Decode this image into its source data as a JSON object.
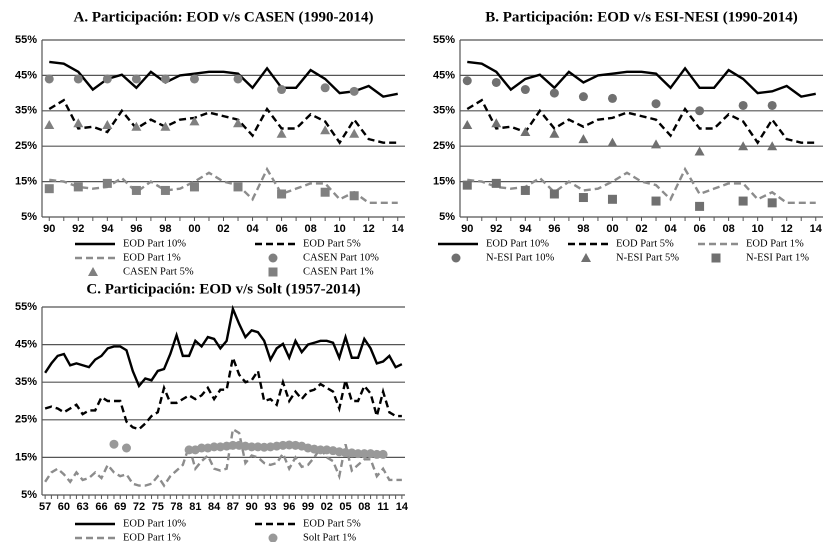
{
  "chart_data": [
    {
      "type": "line",
      "title": "A. Participación: EOD v/s CASEN (1990-2014)",
      "categories": [
        "90",
        null,
        "92",
        null,
        "94",
        null,
        "96",
        null,
        "98",
        null,
        "00",
        null,
        "02",
        null,
        "04",
        null,
        "06",
        null,
        "08",
        null,
        "10",
        null,
        "12",
        null,
        "14"
      ],
      "ylim": [
        5,
        55
      ],
      "yticks": [
        {
          "value": 5,
          "label": "5%"
        },
        {
          "value": 15,
          "label": "15%"
        },
        {
          "value": 25,
          "label": "25%"
        },
        {
          "value": 35,
          "label": "35%"
        },
        {
          "value": 45,
          "label": "45%"
        },
        {
          "value": 55,
          "label": "55%"
        }
      ],
      "grid": true,
      "series": [
        {
          "name": "EOD Part 10%",
          "color": "#000000",
          "dash": false,
          "values": [
            48.8,
            48.3,
            46,
            41,
            44,
            45.2,
            41.5,
            46,
            43,
            45,
            45.5,
            46,
            46,
            45.5,
            41.5,
            47,
            41.5,
            41.5,
            46.5,
            44,
            40,
            40.5,
            42,
            39,
            39.8
          ]
        },
        {
          "name": "EOD Part 5%",
          "color": "#000000",
          "dash": true,
          "values": [
            35.5,
            38,
            30,
            30.5,
            29,
            35,
            30,
            32.5,
            30.5,
            32.5,
            33,
            34.5,
            33.5,
            32.5,
            28,
            35.5,
            30,
            30,
            34,
            32,
            26,
            32.5,
            27,
            26,
            26
          ]
        },
        {
          "name": "EOD Part 1%",
          "color": "#8c8c8c",
          "dash": true,
          "values": [
            15.5,
            15,
            13.5,
            13,
            13.5,
            16,
            12,
            15,
            12.5,
            13,
            15,
            17.5,
            15,
            14,
            10,
            18.5,
            11.5,
            13,
            14.5,
            14.5,
            10,
            12,
            9,
            9,
            9
          ]
        },
        {
          "name": "CASEN Part 10%",
          "color": "#808080",
          "marker": "circle",
          "values": [
            44,
            null,
            44,
            null,
            44,
            null,
            44,
            null,
            44,
            null,
            44,
            null,
            null,
            44,
            null,
            null,
            41,
            null,
            null,
            41.5,
            null,
            40.5,
            null,
            null,
            null
          ]
        },
        {
          "name": "CASEN Part 5%",
          "color": "#808080",
          "marker": "triangle",
          "values": [
            31,
            null,
            31.5,
            null,
            31,
            null,
            30.5,
            null,
            30.5,
            null,
            32,
            null,
            null,
            31.5,
            null,
            null,
            28.5,
            null,
            null,
            29.5,
            null,
            28.5,
            null,
            null,
            null
          ]
        },
        {
          "name": "CASEN Part 1%",
          "color": "#808080",
          "marker": "square",
          "values": [
            13,
            null,
            13.5,
            null,
            14.5,
            null,
            12.5,
            null,
            12.5,
            null,
            13.5,
            null,
            null,
            13.5,
            null,
            null,
            11.5,
            null,
            null,
            12,
            null,
            11,
            null,
            null,
            null
          ]
        }
      ]
    },
    {
      "type": "line",
      "title": "B. Participación: EOD v/s ESI-NESI (1990-2014)",
      "categories": [
        "90",
        null,
        "92",
        null,
        "94",
        null,
        "96",
        null,
        "98",
        null,
        "00",
        null,
        "02",
        null,
        "04",
        null,
        "06",
        null,
        "08",
        null,
        "10",
        null,
        "12",
        null,
        "14"
      ],
      "ylim": [
        5,
        55
      ],
      "yticks": [
        {
          "value": 5,
          "label": "5%"
        },
        {
          "value": 15,
          "label": "15%"
        },
        {
          "value": 25,
          "label": "25%"
        },
        {
          "value": 35,
          "label": "35%"
        },
        {
          "value": 45,
          "label": "45%"
        },
        {
          "value": 55,
          "label": "55%"
        }
      ],
      "grid": true,
      "series": [
        {
          "name": "EOD Part 10%",
          "color": "#000000",
          "dash": false,
          "values": [
            48.8,
            48.3,
            46,
            41,
            44,
            45.2,
            41.5,
            46,
            43,
            45,
            45.5,
            46,
            46,
            45.5,
            41.5,
            47,
            41.5,
            41.5,
            46.5,
            44,
            40,
            40.5,
            42,
            39,
            39.8
          ]
        },
        {
          "name": "EOD Part 5%",
          "color": "#000000",
          "dash": true,
          "values": [
            35.5,
            38,
            30,
            30.5,
            29,
            35,
            30,
            32.5,
            30.5,
            32.5,
            33,
            34.5,
            33.5,
            32.5,
            28,
            35.5,
            30,
            30,
            34,
            32,
            26,
            32.5,
            27,
            26,
            26
          ]
        },
        {
          "name": "EOD Part 1%",
          "color": "#8c8c8c",
          "dash": true,
          "values": [
            15.5,
            15,
            13.5,
            13,
            13.5,
            16,
            12,
            15,
            12.5,
            13,
            15,
            17.5,
            15,
            14,
            10,
            18.5,
            11.5,
            13,
            14.5,
            14.5,
            10,
            12,
            9,
            9,
            9
          ]
        },
        {
          "name": "N-ESI Part 10%",
          "color": "#707070",
          "marker": "circle",
          "values": [
            43.5,
            null,
            43,
            null,
            41,
            null,
            40,
            null,
            39,
            null,
            38.5,
            null,
            null,
            37,
            null,
            null,
            35,
            null,
            null,
            36.5,
            null,
            36.5,
            null,
            null,
            null
          ]
        },
        {
          "name": "N-ESI Part 5%",
          "color": "#707070",
          "marker": "triangle",
          "values": [
            31,
            null,
            31.5,
            null,
            29,
            null,
            28.5,
            null,
            27,
            null,
            26,
            null,
            null,
            25.5,
            null,
            null,
            23.5,
            null,
            null,
            25,
            null,
            25,
            null,
            null,
            null
          ]
        },
        {
          "name": "N-ESI Part 1%",
          "color": "#707070",
          "marker": "square",
          "values": [
            14,
            null,
            14.5,
            null,
            12.5,
            null,
            11.5,
            null,
            10.5,
            null,
            10,
            null,
            null,
            9.5,
            null,
            null,
            8,
            null,
            null,
            9.5,
            null,
            9,
            null,
            null,
            null
          ]
        }
      ]
    },
    {
      "type": "line",
      "title": "C. Participación: EOD v/s Solt (1957-2014)",
      "categories": [
        "57",
        null,
        null,
        "60",
        null,
        null,
        "63",
        null,
        null,
        "66",
        null,
        null,
        "69",
        null,
        null,
        "72",
        null,
        null,
        "75",
        null,
        null,
        "78",
        null,
        null,
        "81",
        null,
        null,
        "84",
        null,
        null,
        "87",
        null,
        null,
        "90",
        null,
        null,
        "93",
        null,
        null,
        "96",
        null,
        null,
        "99",
        null,
        null,
        "02",
        null,
        null,
        "05",
        null,
        null,
        "08",
        null,
        null,
        "11",
        null,
        null,
        "14"
      ],
      "ylim": [
        5,
        55
      ],
      "yticks": [
        {
          "value": 5,
          "label": "5%"
        },
        {
          "value": 15,
          "label": "15%"
        },
        {
          "value": 25,
          "label": "25%"
        },
        {
          "value": 35,
          "label": "35%"
        },
        {
          "value": 45,
          "label": "45%"
        },
        {
          "value": 55,
          "label": "55%"
        }
      ],
      "grid": true,
      "series": [
        {
          "name": "EOD Part 10%",
          "color": "#000000",
          "dash": false,
          "values": [
            37.5,
            40,
            42,
            42.5,
            39.5,
            40,
            39.5,
            39,
            41,
            42,
            44,
            44.5,
            44.5,
            43.5,
            38,
            34,
            36,
            35.5,
            38,
            38.5,
            42.5,
            47.5,
            42,
            42,
            46,
            44.5,
            47,
            46.5,
            44,
            46,
            54.5,
            50.5,
            47,
            48.8,
            48.3,
            46,
            41,
            44,
            45.2,
            41.5,
            46,
            43,
            45,
            45.5,
            46,
            46,
            45.5,
            41.5,
            47,
            41.5,
            41.5,
            46.5,
            44,
            40,
            40.5,
            42,
            39,
            39.8
          ]
        },
        {
          "name": "EOD Part 5%",
          "color": "#000000",
          "dash": true,
          "values": [
            28,
            28.5,
            28,
            27,
            28,
            29,
            26.5,
            27.5,
            27.5,
            31,
            30,
            30,
            30,
            24.5,
            23,
            22.5,
            24,
            26,
            27,
            33.5,
            29.5,
            29.5,
            30.5,
            31.5,
            30.5,
            31.5,
            33.5,
            30.5,
            33,
            33,
            41.5,
            37,
            35,
            35.5,
            38,
            30,
            30.5,
            29,
            35,
            30,
            32.5,
            30.5,
            32.5,
            33,
            34.5,
            33.5,
            32.5,
            28,
            35.5,
            30,
            30,
            34,
            32,
            26,
            32.5,
            27,
            26,
            26
          ]
        },
        {
          "name": "EOD Part 1%",
          "color": "#8c8c8c",
          "dash": true,
          "values": [
            8.5,
            11,
            12,
            10.5,
            8.5,
            11,
            9,
            9.5,
            11,
            9.5,
            13,
            11,
            10,
            10.5,
            8,
            7.5,
            7.5,
            8,
            10,
            7.5,
            10,
            11.5,
            13,
            18,
            12,
            14,
            15.5,
            12,
            11.5,
            12,
            22.5,
            21.5,
            13.5,
            15.5,
            15,
            13.5,
            13,
            13.5,
            16,
            12,
            15,
            12.5,
            13,
            15,
            17.5,
            15,
            14,
            10,
            18.5,
            11.5,
            13,
            14.5,
            14.5,
            10,
            12,
            9,
            9,
            9
          ]
        },
        {
          "name": "Solt Part 1%",
          "color": "#999999",
          "marker": "circle",
          "values": [
            null,
            null,
            null,
            null,
            null,
            null,
            null,
            null,
            null,
            null,
            null,
            18.5,
            null,
            17.5,
            null,
            null,
            null,
            null,
            null,
            null,
            null,
            null,
            null,
            17,
            17,
            17.5,
            17.5,
            17.8,
            17.8,
            18,
            18.2,
            18.2,
            18,
            17.8,
            17.8,
            17.7,
            17.8,
            18,
            18.2,
            18.3,
            18.2,
            18,
            17.5,
            17.2,
            17,
            17,
            16.8,
            16.5,
            16.3,
            16.2,
            16,
            16,
            16,
            15.8,
            15.8,
            null,
            null,
            null
          ]
        }
      ]
    }
  ]
}
